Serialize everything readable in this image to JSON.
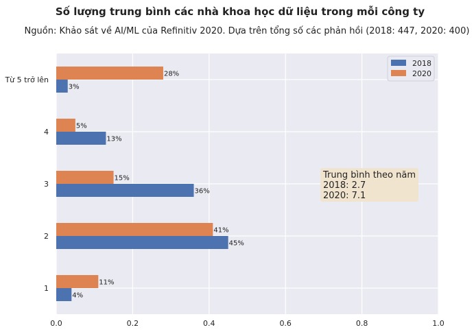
{
  "chart_data": {
    "type": "bar",
    "orientation": "horizontal",
    "title": "Số lượng trung bình các nhà khoa học dữ liệu trong mỗi công ty",
    "subtitle": "Nguồn: Khảo sát về AI/ML của Refinitiv 2020. Dựa trên tổng số các phản hồi (2018: 447, 2020: 400)",
    "categories": [
      "1",
      "2",
      "3",
      "4",
      "Từ 5 trở lên"
    ],
    "series": [
      {
        "name": "2018",
        "values": [
          0.04,
          0.45,
          0.36,
          0.13,
          0.03
        ],
        "labels": [
          "4%",
          "45%",
          "36%",
          "13%",
          "3%"
        ],
        "color": "#4c72b0"
      },
      {
        "name": "2020",
        "values": [
          0.11,
          0.41,
          0.15,
          0.05,
          0.28
        ],
        "labels": [
          "11%",
          "41%",
          "15%",
          "5%",
          "28%"
        ],
        "color": "#dd8452"
      }
    ],
    "xlim": [
      0,
      1.0
    ],
    "xticks": [
      "0.0",
      "0.2",
      "0.4",
      "0.6",
      "0.8",
      "1.0"
    ],
    "grid": true,
    "legend_position": "top-right",
    "annotation": {
      "lines": [
        "Trung bình theo năm",
        "2018: 2.7",
        "2020: 7.1"
      ]
    },
    "colors": {
      "plot_bg": "#eaeaf2",
      "grid": "#ffffff",
      "annotation_bg": "#f1e4cf"
    }
  }
}
